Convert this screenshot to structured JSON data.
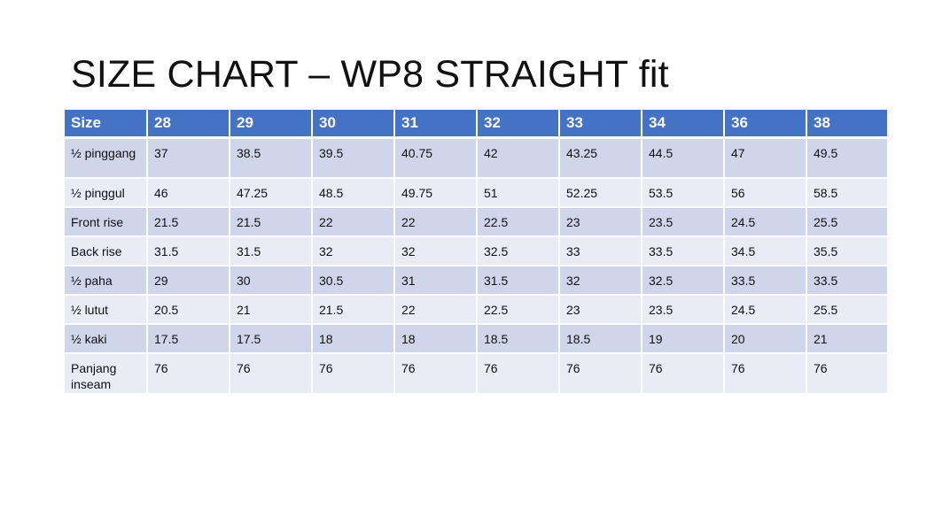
{
  "title": "SIZE CHART – WP8 STRAIGHT fit",
  "table": {
    "header_label": "Size",
    "sizes": [
      "28",
      "29",
      "30",
      "31",
      "32",
      "33",
      "34",
      "36",
      "38"
    ],
    "rows": [
      {
        "label": "½ pinggang",
        "values": [
          "37",
          "38.5",
          "39.5",
          "40.75",
          "42",
          "43.25",
          "44.5",
          "47",
          "49.5"
        ]
      },
      {
        "label": "½ pinggul",
        "values": [
          "46",
          "47.25",
          "48.5",
          "49.75",
          "51",
          "52.25",
          "53.5",
          "56",
          "58.5"
        ]
      },
      {
        "label": "Front rise",
        "values": [
          "21.5",
          "21.5",
          "22",
          "22",
          "22.5",
          "23",
          "23.5",
          "24.5",
          "25.5"
        ]
      },
      {
        "label": "Back rise",
        "values": [
          "31.5",
          "31.5",
          "32",
          "32",
          "32.5",
          "33",
          "33.5",
          "34.5",
          "35.5"
        ]
      },
      {
        "label": "½ paha",
        "values": [
          "29",
          "30",
          "30.5",
          "31",
          "31.5",
          "32",
          "32.5",
          "33.5",
          "33.5"
        ]
      },
      {
        "label": "½ lutut",
        "values": [
          "20.5",
          "21",
          "21.5",
          "22",
          "22.5",
          "23",
          "23.5",
          "24.5",
          "25.5"
        ]
      },
      {
        "label": "½ kaki",
        "values": [
          "17.5",
          "17.5",
          "18",
          "18",
          "18.5",
          "18.5",
          "19",
          "20",
          "21"
        ]
      },
      {
        "label": "Panjang inseam",
        "values": [
          "76",
          "76",
          "76",
          "76",
          "76",
          "76",
          "76",
          "76",
          "76"
        ]
      }
    ]
  },
  "colors": {
    "header_bg": "#4472c4",
    "row_band_dark": "#cfd5ea",
    "row_band_light": "#e9ebf5"
  }
}
